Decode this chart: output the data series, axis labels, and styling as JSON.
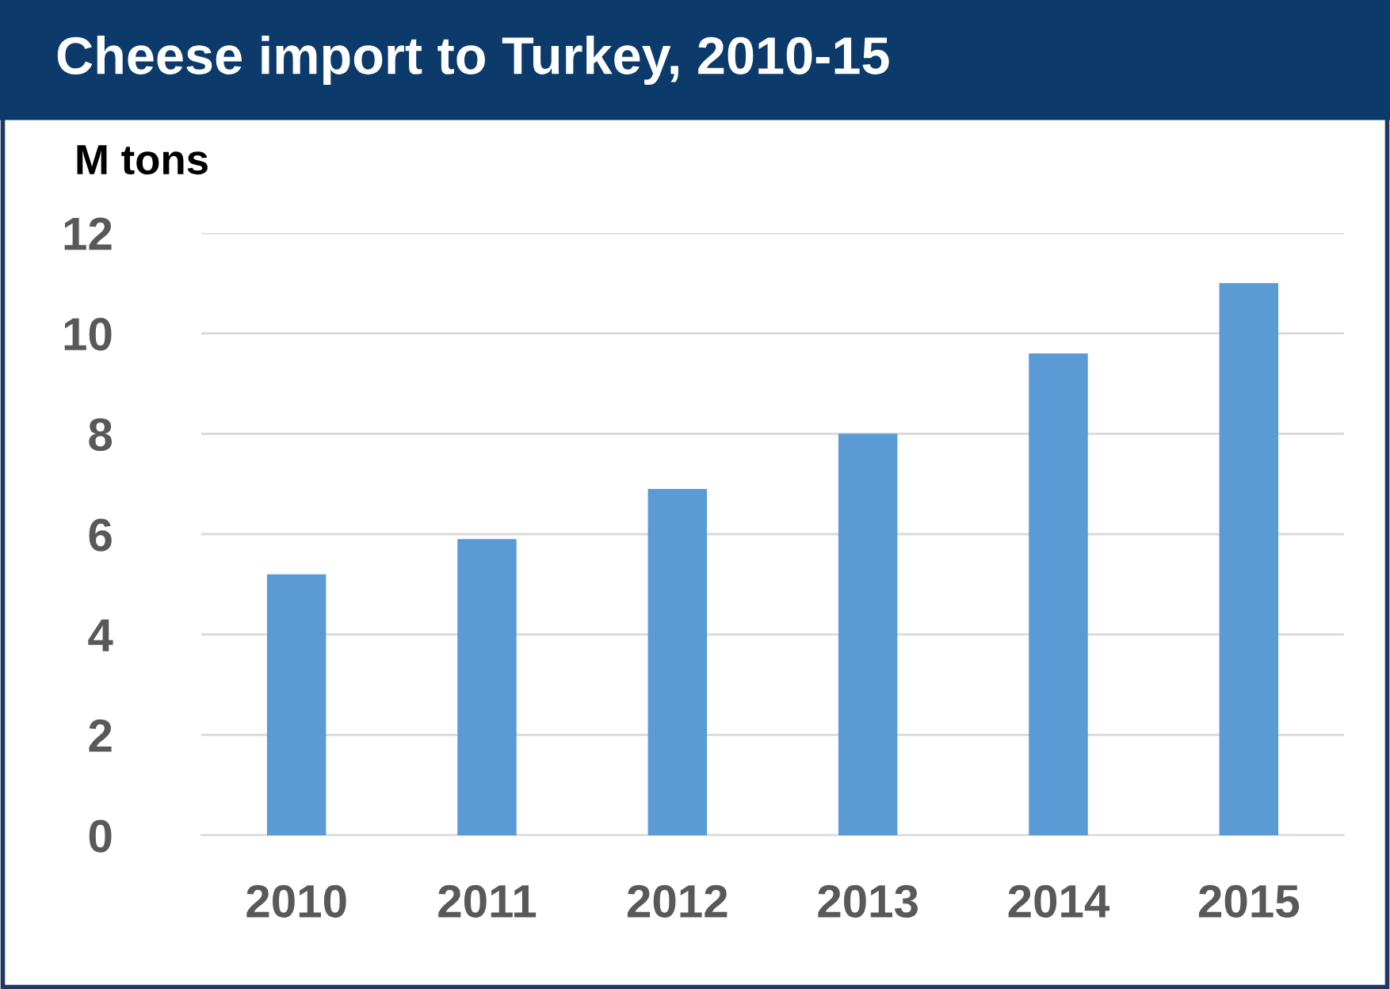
{
  "chart_data": {
    "type": "bar",
    "title": "Cheese import to Turkey, 2010-15",
    "ylabel": "M tons",
    "categories": [
      "2010",
      "2011",
      "2012",
      "2013",
      "2014",
      "2015"
    ],
    "values": [
      5.2,
      5.9,
      6.9,
      8.0,
      9.6,
      11.0
    ],
    "color": "#5b9bd5",
    "ylim": [
      0,
      12
    ],
    "yticks": [
      0,
      2,
      4,
      6,
      8,
      10,
      12
    ],
    "grid": "y",
    "legend": false
  }
}
